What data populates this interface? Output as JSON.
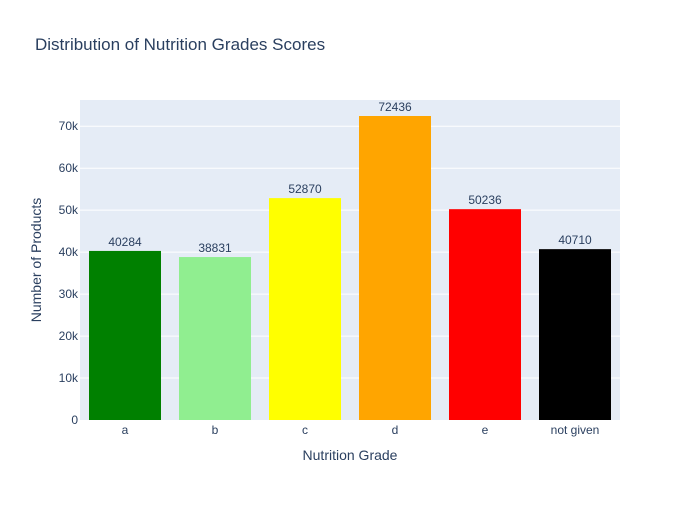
{
  "chart_data": {
    "type": "bar",
    "title": "Distribution of Nutrition Grades Scores",
    "xlabel": "Nutrition Grade",
    "ylabel": "Number of Products",
    "categories": [
      "a",
      "b",
      "c",
      "d",
      "e",
      "not given"
    ],
    "values": [
      40284,
      38831,
      52870,
      72436,
      50236,
      40710
    ],
    "bar_colors": [
      "#008000",
      "#90EE90",
      "#FFFF00",
      "#FFA500",
      "#FF0000",
      "#000000"
    ],
    "ylim": [
      0,
      76248
    ],
    "yticks": [
      0,
      10000,
      20000,
      30000,
      40000,
      50000,
      60000,
      70000
    ],
    "ytick_labels": [
      "0",
      "10k",
      "20k",
      "30k",
      "40k",
      "50k",
      "60k",
      "70k"
    ],
    "grid": true,
    "plot_background": "#E5ECF6",
    "text_color": "#2A3F5F"
  }
}
